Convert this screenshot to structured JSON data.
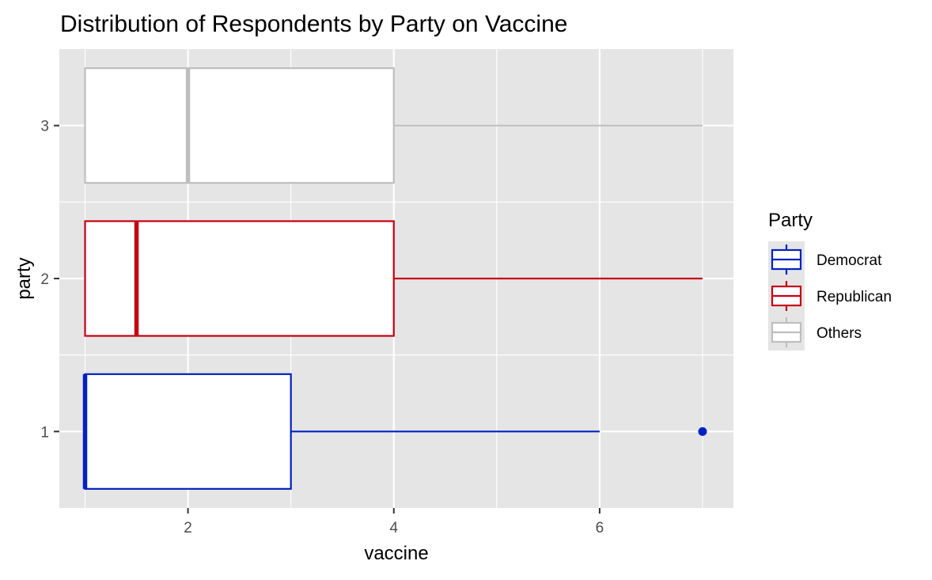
{
  "chart_data": {
    "type": "boxplot",
    "orientation": "horizontal",
    "title": "Distribution of Respondents by Party on Vaccine",
    "xlabel": "vaccine",
    "ylabel": "party",
    "xlim": [
      0.75,
      7.3
    ],
    "ylim": [
      0.5,
      3.5
    ],
    "x_ticks": [
      2,
      4,
      6
    ],
    "y_ticks": [
      1,
      2,
      3
    ],
    "grid": true,
    "legend": {
      "title": "Party",
      "placement": "right",
      "items": [
        {
          "label": "Democrat",
          "color": "#0022C0"
        },
        {
          "label": "Republican",
          "color": "#C40012"
        },
        {
          "label": "Others",
          "color": "#BEBEBE"
        }
      ]
    },
    "series": [
      {
        "name": "Democrat",
        "y": 1,
        "color": "#0022C0",
        "min": 1,
        "q1": 1,
        "median": 1,
        "q3": 3,
        "max": 6,
        "outliers": [
          7
        ]
      },
      {
        "name": "Republican",
        "y": 2,
        "color": "#C40012",
        "min": 1,
        "q1": 1,
        "median": 1.5,
        "q3": 4,
        "max": 7,
        "outliers": []
      },
      {
        "name": "Others",
        "y": 3,
        "color": "#BEBEBE",
        "min": 1,
        "q1": 1,
        "median": 2,
        "q3": 4,
        "max": 7,
        "outliers": []
      }
    ],
    "colors": {
      "panel_background": "#E5E5E5",
      "grid_major": "#FFFFFF",
      "text": "#000000",
      "tick_text": "#4D4D4D",
      "tick_mark": "#333333"
    }
  }
}
